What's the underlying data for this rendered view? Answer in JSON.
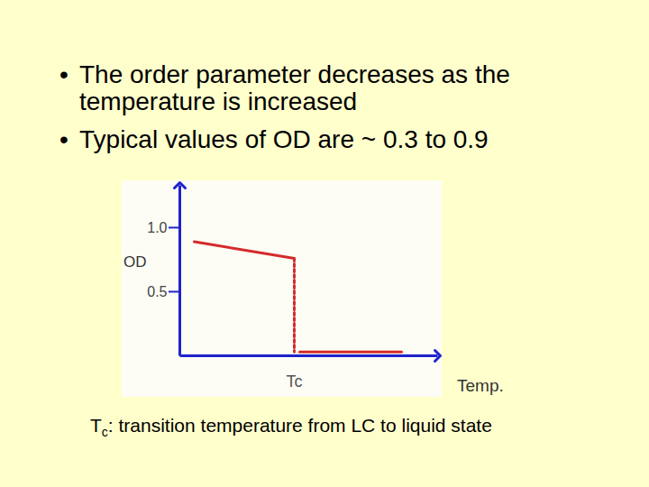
{
  "slide": {
    "bullets": [
      "The order parameter decreases as the temperature is increased",
      "Typical values of OD are ~ 0.3 to 0.9"
    ]
  },
  "chart_data": {
    "type": "line",
    "x_label": "Temp.",
    "y_label": "OD",
    "xlim": [
      0,
      100
    ],
    "ylim": [
      0,
      1.33
    ],
    "xticks": [
      {
        "value": 44.4,
        "label": "Tc"
      }
    ],
    "yticks": [
      0.5,
      {
        "value": 1,
        "label": "1.0"
      }
    ],
    "series": [
      {
        "x": [
          5.6,
          44.4
        ],
        "values": [
          0.89,
          0.76
        ],
        "color": "#d42a2a",
        "line_style": "solid"
      },
      {
        "x": [
          44.4,
          44.4
        ],
        "values": [
          0.76,
          0.03
        ],
        "color": "#d42a2a",
        "line_style": "dotted"
      },
      {
        "x": [
          46.5,
          86
        ],
        "values": [
          0.03,
          0.03
        ],
        "color": "#d42a2a",
        "line_style": "solid"
      }
    ]
  },
  "caption": {
    "text": "T",
    "sub": "c",
    "rest": ": transition temperature from LC to liquid state"
  }
}
